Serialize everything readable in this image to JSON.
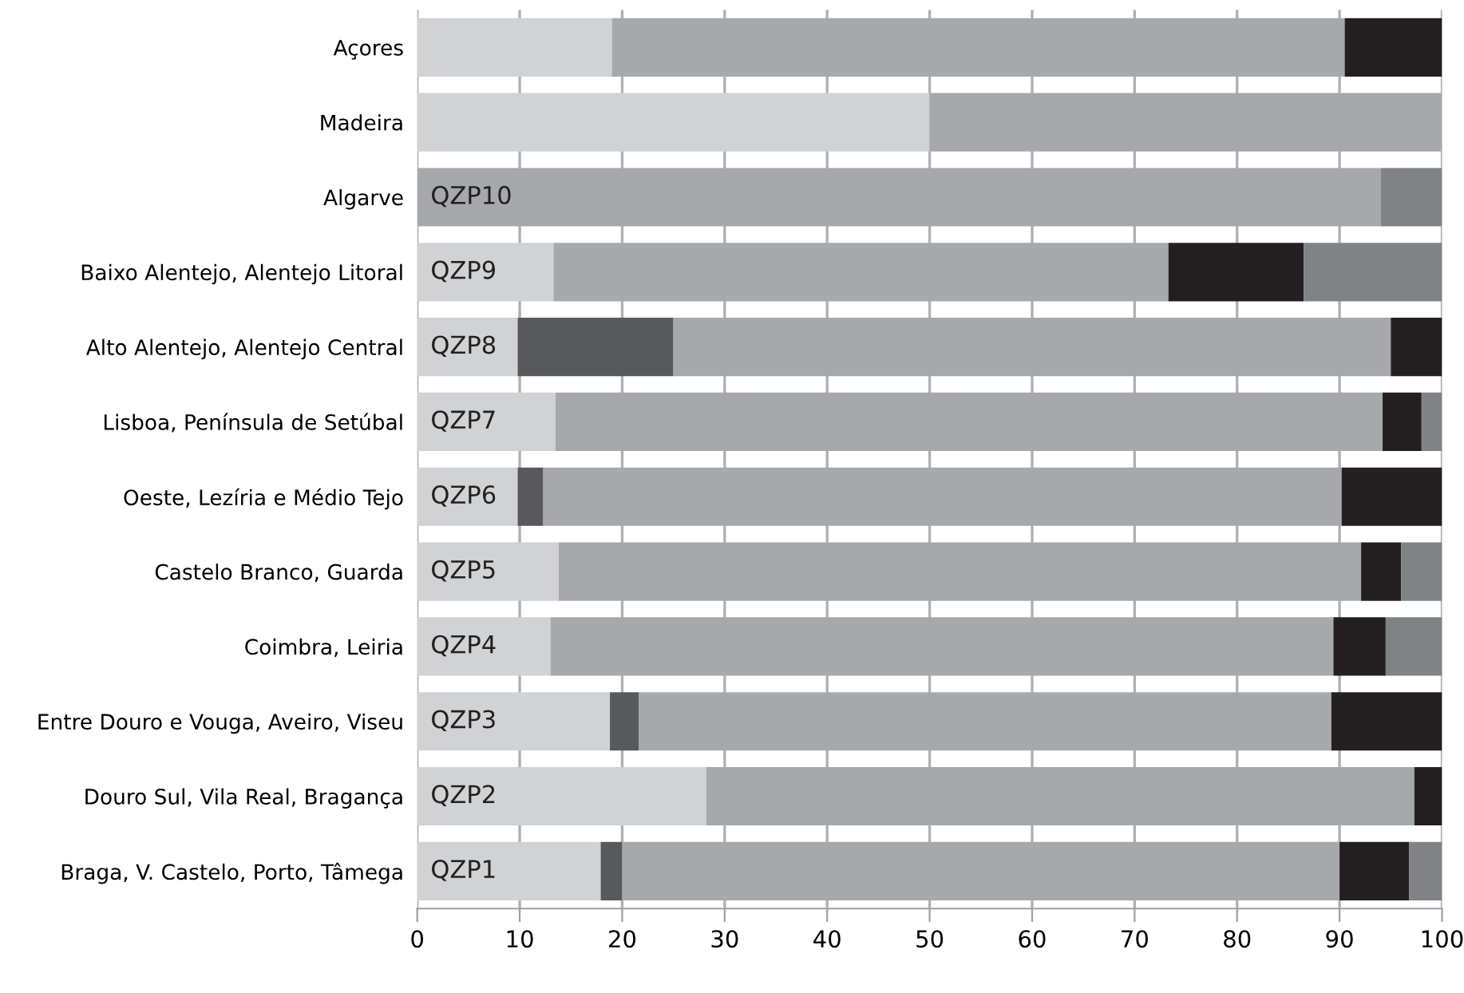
{
  "chart_data": {
    "type": "bar",
    "orientation": "horizontal",
    "stacked": true,
    "categories": [
      "Açores",
      "Madeira",
      "Algarve",
      "Baixo Alentejo, Alentejo Litoral",
      "Alto Alentejo, Alentejo Central",
      "Lisboa, Península de Setúbal",
      "Oeste, Lezíria e Médio Tejo",
      "Castelo Branco, Guarda",
      "Coimbra, Leiria",
      "Entre Douro e Vouga, Aveiro, Viseu",
      "Douro Sul, Vila Real, Bragança",
      "Braga, V. Castelo, Porto, Tâmega"
    ],
    "series": [
      {
        "color": "#d1d2d4",
        "values": [
          19,
          50,
          0,
          13.3,
          9.8,
          13.5,
          9.8,
          13.8,
          13,
          18.8,
          28.2,
          17.9
        ]
      },
      {
        "color": "#58595b",
        "values": [
          0,
          0,
          0,
          0,
          15.2,
          0,
          2.5,
          0,
          0,
          2.8,
          0,
          2.1
        ]
      },
      {
        "color": "#a7a8ab",
        "values": [
          71.5,
          50,
          94,
          60,
          70,
          80.7,
          77.9,
          78.3,
          76.4,
          67.6,
          69.1,
          70
        ]
      },
      {
        "color": "#231f20",
        "values": [
          9.5,
          0,
          0,
          13.2,
          5,
          3.8,
          9.8,
          3.9,
          5.1,
          10.8,
          2.7,
          6.8
        ]
      },
      {
        "color": "#808285",
        "values": [
          0,
          0,
          6,
          13.5,
          0,
          2,
          0,
          4,
          5.5,
          0,
          0,
          3.2
        ]
      }
    ],
    "xlim": [
      0,
      100
    ],
    "xticks": [
      0,
      10,
      20,
      30,
      40,
      50,
      60,
      70,
      80,
      90,
      100
    ],
    "grid": "x",
    "annotations": [
      {
        "text": "QZP10",
        "y": "Algarve"
      },
      {
        "text": "QZP9",
        "y": "Baixo Alentejo, Alentejo Litoral"
      },
      {
        "text": "QZP8",
        "y": "Alto Alentejo, Alentejo Central"
      },
      {
        "text": "QZP7",
        "y": "Lisboa, Península de Setúbal"
      },
      {
        "text": "QZP6",
        "y": "Oeste, Lezíria e Médio Tejo"
      },
      {
        "text": "QZP5",
        "y": "Castelo Branco, Guarda"
      },
      {
        "text": "QZP4",
        "y": "Coimbra, Leiria"
      },
      {
        "text": "QZP3",
        "y": "Entre Douro e Vouga, Aveiro, Viseu"
      },
      {
        "text": "QZP2",
        "y": "Douro Sul, Vila Real, Bragança"
      },
      {
        "text": "QZP1",
        "y": "Braga, V. Castelo, Porto, Tâmega"
      }
    ]
  }
}
